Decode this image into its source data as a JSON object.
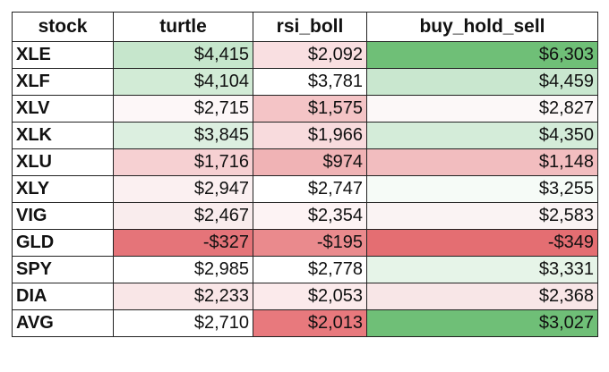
{
  "columns": [
    "stock",
    "turtle",
    "rsi_boll",
    "buy_hold_sell"
  ],
  "rows": [
    {
      "stock": "XLE",
      "turtle": "$4,415",
      "rsi_boll": "$2,092",
      "buy_hold_sell": "$6,303",
      "colors": [
        "#c6e6cc",
        "#f9dfe1",
        "#6fbf77"
      ]
    },
    {
      "stock": "XLF",
      "turtle": "$4,104",
      "rsi_boll": "$3,781",
      "buy_hold_sell": "$4,459",
      "colors": [
        "#d2ebd6",
        "#ffffff",
        "#c9e7cf"
      ]
    },
    {
      "stock": "XLV",
      "turtle": "$2,715",
      "rsi_boll": "$1,575",
      "buy_hold_sell": "$2,827",
      "colors": [
        "#fdf7f8",
        "#f4c4c6",
        "#fcf8f8"
      ]
    },
    {
      "stock": "XLK",
      "turtle": "$3,845",
      "rsi_boll": "$1,966",
      "buy_hold_sell": "$4,350",
      "colors": [
        "#dcefe0",
        "#f8dbdd",
        "#d4ecd9"
      ]
    },
    {
      "stock": "XLU",
      "turtle": "$1,716",
      "rsi_boll": "$974",
      "buy_hold_sell": "$1,148",
      "colors": [
        "#f6d0d2",
        "#f0b3b5",
        "#f2bdbf"
      ]
    },
    {
      "stock": "XLY",
      "turtle": "$2,947",
      "rsi_boll": "$2,747",
      "buy_hold_sell": "$3,255",
      "colors": [
        "#fbf0f1",
        "#ffffff",
        "#f6fbf7"
      ]
    },
    {
      "stock": "VIG",
      "turtle": "$2,467",
      "rsi_boll": "$2,354",
      "buy_hold_sell": "$2,583",
      "colors": [
        "#f9eced",
        "#fdf3f4",
        "#faf3f3"
      ]
    },
    {
      "stock": "GLD",
      "turtle": "-$327",
      "rsi_boll": "-$195",
      "buy_hold_sell": "-$349",
      "colors": [
        "#e57479",
        "#ea8a8d",
        "#e46e72"
      ]
    },
    {
      "stock": "SPY",
      "turtle": "$2,985",
      "rsi_boll": "$2,778",
      "buy_hold_sell": "$3,331",
      "colors": [
        "#ffffff",
        "#ffffff",
        "#e6f4e8"
      ]
    },
    {
      "stock": "DIA",
      "turtle": "$2,233",
      "rsi_boll": "$2,053",
      "buy_hold_sell": "$2,368",
      "colors": [
        "#f9e6e7",
        "#fbeaeb",
        "#f8e6e7"
      ]
    },
    {
      "stock": "AVG",
      "turtle": "$2,710",
      "rsi_boll": "$2,013",
      "buy_hold_sell": "$3,027",
      "colors": [
        "#ffffff",
        "#e8797d",
        "#6fbf77"
      ]
    }
  ]
}
